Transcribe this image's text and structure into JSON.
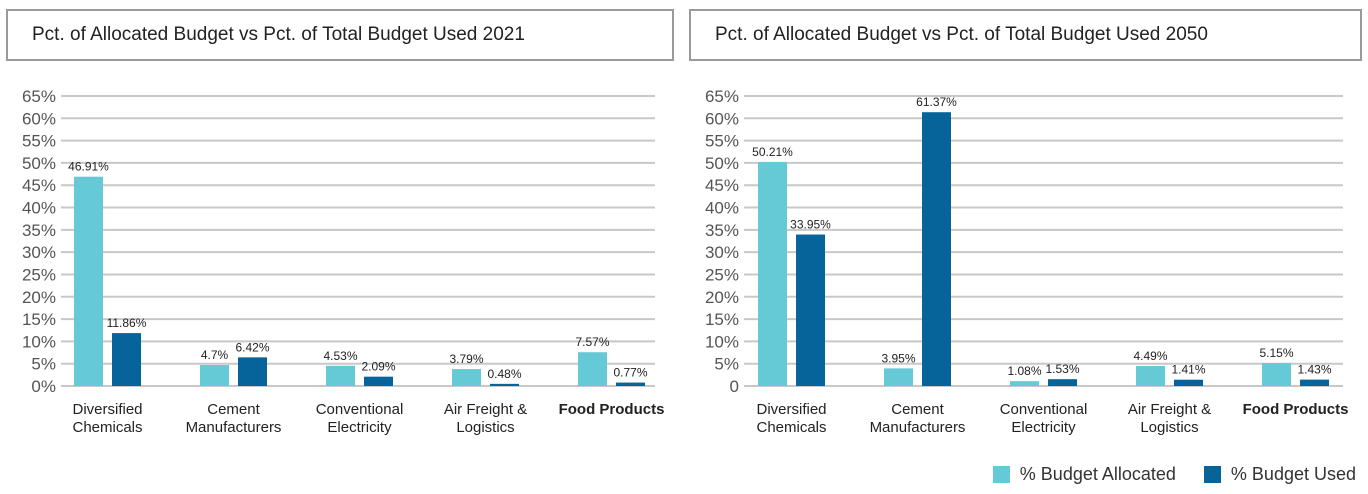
{
  "colors": {
    "allocated": "#65c9d6",
    "used": "#07649a",
    "grid": "#c8c8c8"
  },
  "legend": [
    {
      "label": "% Budget Allocated",
      "color_key": "allocated"
    },
    {
      "label": "% Budget Used",
      "color_key": "used"
    }
  ],
  "chart_data": [
    {
      "type": "bar",
      "title": "Pct. of Allocated Budget vs Pct. of Total Budget Used 2021",
      "categories": [
        [
          "Diversified",
          "Chemicals"
        ],
        [
          "Cement",
          "Manufacturers"
        ],
        [
          "Conventional",
          "Electricity"
        ],
        [
          "Air Freight &",
          "Logistics"
        ],
        [
          "Food Products"
        ]
      ],
      "bold_categories": [
        4
      ],
      "series": [
        {
          "name": "% Budget Allocated",
          "values": [
            46.91,
            4.7,
            4.53,
            3.79,
            7.57
          ],
          "labels": [
            "46.91%",
            "4.7%",
            "4.53%",
            "3.79%",
            "7.57%"
          ]
        },
        {
          "name": "% Budget Used",
          "values": [
            11.86,
            6.42,
            2.09,
            0.48,
            0.77
          ],
          "labels": [
            "11.86%",
            "6.42%",
            "2.09%",
            "0.48%",
            "0.77%"
          ]
        }
      ],
      "yticks": [
        "0%",
        "5%",
        "10%",
        "15%",
        "20%",
        "25%",
        "30%",
        "35%",
        "40%",
        "45%",
        "50%",
        "55%",
        "60%",
        "65%"
      ],
      "ylim": [
        0,
        65
      ],
      "xlabel": "",
      "ylabel": "",
      "grid": true
    },
    {
      "type": "bar",
      "title": "Pct. of Allocated Budget vs Pct. of Total Budget Used 2050",
      "categories": [
        [
          "Diversified",
          "Chemicals"
        ],
        [
          "Cement",
          "Manufacturers"
        ],
        [
          "Conventional",
          "Electricity"
        ],
        [
          "Air Freight &",
          "Logistics"
        ],
        [
          "Food Products"
        ]
      ],
      "bold_categories": [
        4
      ],
      "series": [
        {
          "name": "% Budget Allocated",
          "values": [
            50.21,
            3.95,
            1.08,
            4.49,
            5.15
          ],
          "labels": [
            "50.21%",
            "3.95%",
            "1.08%",
            "4.49%",
            "5.15%"
          ]
        },
        {
          "name": "% Budget Used",
          "values": [
            33.95,
            61.37,
            1.53,
            1.41,
            1.43
          ],
          "labels": [
            "33.95%",
            "61.37%",
            "1.53%",
            "1.41%",
            "1.43%"
          ]
        }
      ],
      "yticks": [
        "0",
        "5%",
        "10%",
        "15%",
        "20%",
        "25%",
        "30%",
        "35%",
        "40%",
        "45%",
        "50%",
        "55%",
        "60%",
        "65%"
      ],
      "ylim": [
        0,
        65
      ],
      "xlabel": "",
      "ylabel": "",
      "grid": true,
      "legend_position": "bottom-right"
    }
  ]
}
